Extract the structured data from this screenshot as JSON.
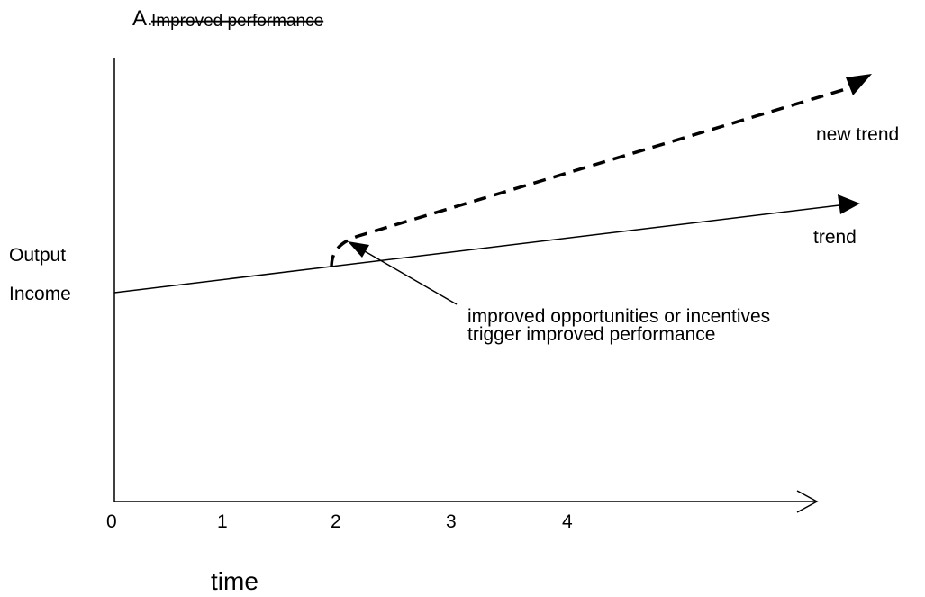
{
  "panel": {
    "letter": "A.",
    "title": "Improved performance"
  },
  "axes": {
    "x_title": "time",
    "x_ticks": [
      "0",
      "1",
      "2",
      "3",
      "4"
    ],
    "y_label_line1": "Output",
    "y_label_line2": "Income"
  },
  "lines": {
    "trend_label": "trend",
    "new_trend_label": "new trend"
  },
  "annotation": {
    "line1": "improved opportunities or incentives",
    "line2": "trigger improved performance"
  },
  "colors": {
    "ink": "#000000",
    "background": "#ffffff"
  }
}
